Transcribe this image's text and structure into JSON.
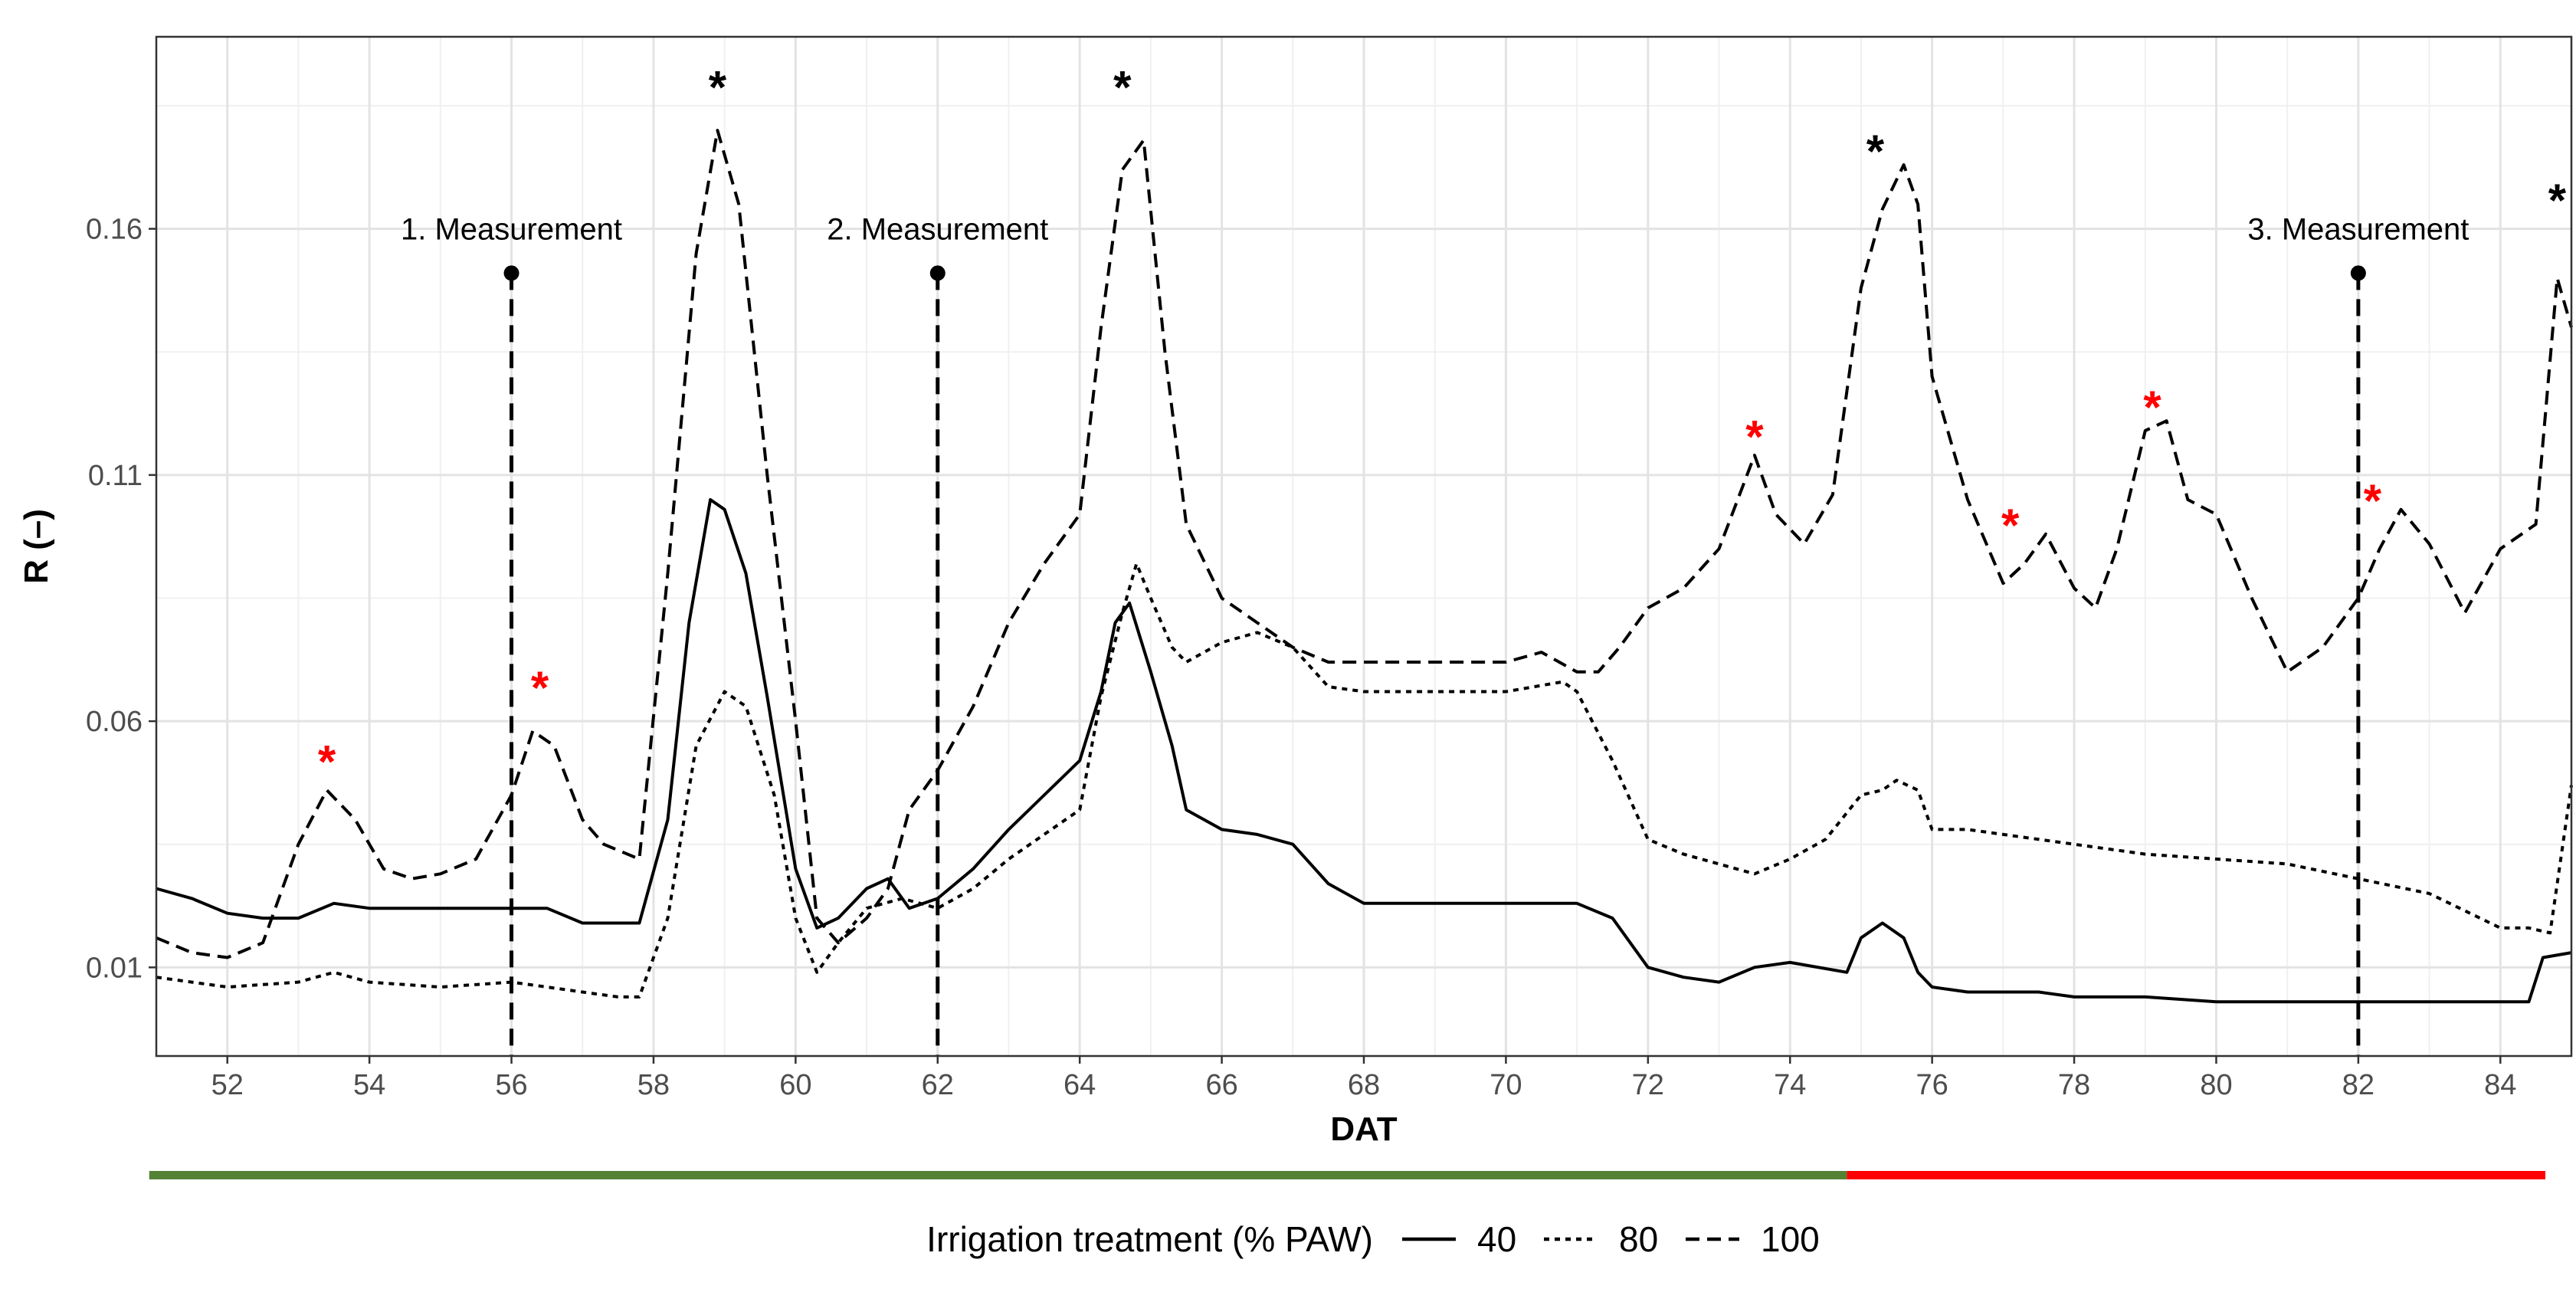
{
  "chart_data": {
    "type": "line",
    "xlabel": "DAT",
    "ylabel": "R (–)",
    "xlim": [
      51,
      85
    ],
    "ylim": [
      -0.008,
      0.199
    ],
    "x_ticks": [
      52,
      54,
      56,
      58,
      60,
      62,
      64,
      66,
      68,
      70,
      72,
      74,
      76,
      78,
      80,
      82,
      84
    ],
    "y_ticks": [
      0.01,
      0.06,
      0.11,
      0.16
    ],
    "y_tick_labels": [
      "0.01",
      "0.06",
      "0.11",
      "0.16"
    ],
    "grid": true,
    "legend": {
      "title": "Irrigation treatment (% PAW)",
      "placement": "bottom",
      "entries": [
        {
          "label": "40",
          "style": "solid"
        },
        {
          "label": "80",
          "style": "dotted"
        },
        {
          "label": "100",
          "style": "dashed"
        }
      ]
    },
    "series": [
      {
        "name": "40",
        "style": "solid",
        "x": [
          51,
          51.5,
          52,
          52.5,
          53,
          53.5,
          54,
          55,
          56,
          56.5,
          57,
          57.5,
          57.8,
          58.2,
          58.5,
          58.8,
          59.0,
          59.3,
          59.6,
          60.0,
          60.3,
          60.6,
          61.0,
          61.3,
          61.6,
          62.0,
          62.5,
          63.0,
          63.5,
          64.0,
          64.3,
          64.5,
          64.7,
          65.0,
          65.3,
          65.5,
          66.0,
          66.5,
          67.0,
          67.5,
          68.0,
          70.0,
          71.0,
          71.5,
          72.0,
          72.5,
          73.0,
          73.5,
          74.0,
          74.8,
          75.0,
          75.3,
          75.6,
          75.8,
          76.0,
          76.5,
          77.0,
          77.5,
          78.0,
          79.0,
          80.0,
          81.0,
          82.0,
          83.0,
          84.0,
          84.4,
          84.6,
          85.0
        ],
        "y": [
          0.026,
          0.024,
          0.021,
          0.02,
          0.02,
          0.023,
          0.022,
          0.022,
          0.022,
          0.022,
          0.019,
          0.019,
          0.019,
          0.04,
          0.08,
          0.105,
          0.103,
          0.09,
          0.065,
          0.03,
          0.018,
          0.02,
          0.026,
          0.028,
          0.022,
          0.024,
          0.03,
          0.038,
          0.045,
          0.052,
          0.066,
          0.08,
          0.084,
          0.07,
          0.055,
          0.042,
          0.038,
          0.037,
          0.035,
          0.027,
          0.023,
          0.023,
          0.023,
          0.02,
          0.01,
          0.008,
          0.007,
          0.01,
          0.011,
          0.009,
          0.016,
          0.019,
          0.016,
          0.009,
          0.006,
          0.005,
          0.005,
          0.005,
          0.004,
          0.004,
          0.003,
          0.003,
          0.003,
          0.003,
          0.003,
          0.003,
          0.012,
          0.013
        ]
      },
      {
        "name": "80",
        "style": "dotted",
        "x": [
          51,
          51.5,
          52,
          53,
          53.5,
          54,
          55,
          56,
          56.5,
          57,
          57.5,
          57.8,
          58.2,
          58.6,
          59.0,
          59.3,
          59.7,
          60.0,
          60.3,
          60.6,
          61.0,
          61.5,
          62.0,
          62.5,
          63.0,
          63.5,
          64.0,
          64.3,
          64.6,
          64.8,
          65.0,
          65.3,
          65.5,
          66.0,
          66.5,
          67.0,
          67.5,
          68.0,
          70.0,
          70.8,
          71.0,
          71.5,
          72.0,
          72.5,
          73.0,
          73.5,
          74.0,
          74.5,
          75.0,
          75.3,
          75.5,
          75.8,
          76.0,
          76.5,
          77.0,
          78.0,
          79.0,
          80.0,
          81.0,
          82.0,
          83.0,
          84.0,
          84.4,
          84.7,
          85.0
        ],
        "y": [
          0.008,
          0.007,
          0.006,
          0.007,
          0.009,
          0.007,
          0.006,
          0.007,
          0.006,
          0.005,
          0.004,
          0.004,
          0.02,
          0.055,
          0.066,
          0.063,
          0.045,
          0.02,
          0.009,
          0.015,
          0.022,
          0.024,
          0.022,
          0.026,
          0.032,
          0.037,
          0.042,
          0.065,
          0.082,
          0.092,
          0.085,
          0.075,
          0.072,
          0.076,
          0.078,
          0.075,
          0.067,
          0.066,
          0.066,
          0.068,
          0.066,
          0.052,
          0.036,
          0.033,
          0.031,
          0.029,
          0.032,
          0.036,
          0.045,
          0.046,
          0.048,
          0.046,
          0.038,
          0.038,
          0.037,
          0.035,
          0.033,
          0.032,
          0.031,
          0.028,
          0.025,
          0.018,
          0.018,
          0.017,
          0.047
        ]
      },
      {
        "name": "100",
        "style": "dashed",
        "x": [
          51,
          51.5,
          52,
          52.5,
          53,
          53.4,
          53.8,
          54.2,
          54.6,
          55,
          55.5,
          56,
          56.3,
          56.6,
          57,
          57.3,
          57.8,
          58.2,
          58.6,
          58.9,
          59.2,
          59.6,
          60.0,
          60.3,
          60.6,
          61.0,
          61.3,
          61.6,
          62.0,
          62.5,
          63.0,
          63.5,
          64.0,
          64.3,
          64.6,
          64.9,
          65.2,
          65.5,
          66.0,
          66.5,
          67.0,
          67.5,
          68.0,
          70.0,
          70.5,
          71.0,
          71.3,
          71.6,
          72.0,
          72.5,
          73.0,
          73.5,
          73.8,
          74.2,
          74.6,
          75.0,
          75.3,
          75.6,
          75.8,
          76.0,
          76.5,
          77.0,
          77.3,
          77.6,
          78.0,
          78.3,
          78.6,
          79.0,
          79.3,
          79.6,
          80.0,
          80.5,
          81.0,
          81.5,
          82.0,
          82.3,
          82.6,
          83.0,
          83.5,
          84.0,
          84.5,
          84.8,
          85.0
        ],
        "y": [
          0.016,
          0.013,
          0.012,
          0.015,
          0.035,
          0.046,
          0.04,
          0.03,
          0.028,
          0.029,
          0.032,
          0.045,
          0.058,
          0.055,
          0.04,
          0.035,
          0.032,
          0.09,
          0.155,
          0.18,
          0.165,
          0.11,
          0.06,
          0.02,
          0.015,
          0.02,
          0.026,
          0.042,
          0.05,
          0.063,
          0.08,
          0.092,
          0.102,
          0.14,
          0.172,
          0.178,
          0.135,
          0.1,
          0.085,
          0.08,
          0.075,
          0.072,
          0.072,
          0.072,
          0.074,
          0.07,
          0.07,
          0.075,
          0.083,
          0.087,
          0.095,
          0.114,
          0.102,
          0.096,
          0.106,
          0.148,
          0.164,
          0.173,
          0.165,
          0.13,
          0.105,
          0.088,
          0.092,
          0.098,
          0.087,
          0.083,
          0.095,
          0.119,
          0.121,
          0.105,
          0.102,
          0.085,
          0.07,
          0.075,
          0.085,
          0.095,
          0.103,
          0.096,
          0.082,
          0.095,
          0.1,
          0.15,
          0.14
        ]
      }
    ],
    "measurements": [
      {
        "label": "1. Measurement",
        "x": 56,
        "y_top": 0.151,
        "label_y": 0.16
      },
      {
        "label": "2. Measurement",
        "x": 62,
        "y_top": 0.151,
        "label_y": 0.16
      },
      {
        "label": "3. Measurement",
        "x": 82,
        "y_top": 0.151,
        "label_y": 0.16
      }
    ],
    "significance_markers": [
      {
        "text": "*",
        "x": 53.4,
        "y": 0.052,
        "color": "#ff0000"
      },
      {
        "text": "*",
        "x": 56.4,
        "y": 0.067,
        "color": "#ff0000"
      },
      {
        "text": "*",
        "x": 58.9,
        "y": 0.189,
        "color": "#000000"
      },
      {
        "text": "*",
        "x": 64.6,
        "y": 0.189,
        "color": "#000000"
      },
      {
        "text": "*",
        "x": 73.5,
        "y": 0.118,
        "color": "#ff0000"
      },
      {
        "text": "*",
        "x": 75.2,
        "y": 0.176,
        "color": "#000000"
      },
      {
        "text": "*",
        "x": 77.1,
        "y": 0.1,
        "color": "#ff0000"
      },
      {
        "text": "*",
        "x": 79.1,
        "y": 0.124,
        "color": "#ff0000"
      },
      {
        "text": "*",
        "x": 82.2,
        "y": 0.105,
        "color": "#ff0000"
      },
      {
        "text": "*",
        "x": 84.8,
        "y": 0.166,
        "color": "#000000"
      }
    ],
    "period_bar": [
      {
        "from": 50.9,
        "to": 74.8,
        "color": "#548235"
      },
      {
        "from": 74.8,
        "to": 84.9,
        "color": "#ff0000"
      }
    ]
  }
}
